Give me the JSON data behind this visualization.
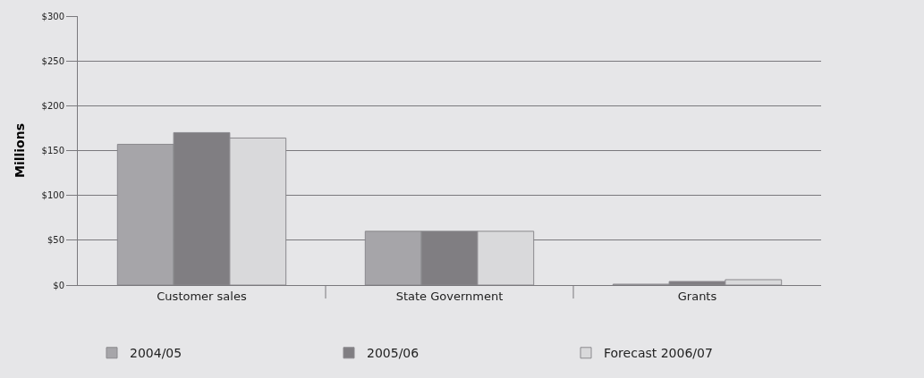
{
  "chart_data": {
    "type": "bar",
    "ylabel": "Millions",
    "categories": [
      "Customer sales",
      "State Government",
      "Grants"
    ],
    "series": [
      {
        "name": "2004/05",
        "color": "#a6a5a9",
        "values": [
          157,
          60,
          1
        ]
      },
      {
        "name": "2005/06",
        "color": "#807e82",
        "values": [
          170,
          60,
          4
        ]
      },
      {
        "name": "Forecast 2006/07",
        "color": "#d9d9db",
        "values": [
          164,
          60,
          6
        ]
      }
    ],
    "ylim": [
      0,
      300
    ],
    "yticks": [
      {
        "value": 0,
        "label": "$0"
      },
      {
        "value": 50,
        "label": "$50"
      },
      {
        "value": 100,
        "label": "$100"
      },
      {
        "value": 150,
        "label": "$150"
      },
      {
        "value": 200,
        "label": "$200"
      },
      {
        "value": 250,
        "label": "$250"
      },
      {
        "value": 300,
        "label": "$300"
      }
    ],
    "grid": "y",
    "legend": "bottom"
  }
}
